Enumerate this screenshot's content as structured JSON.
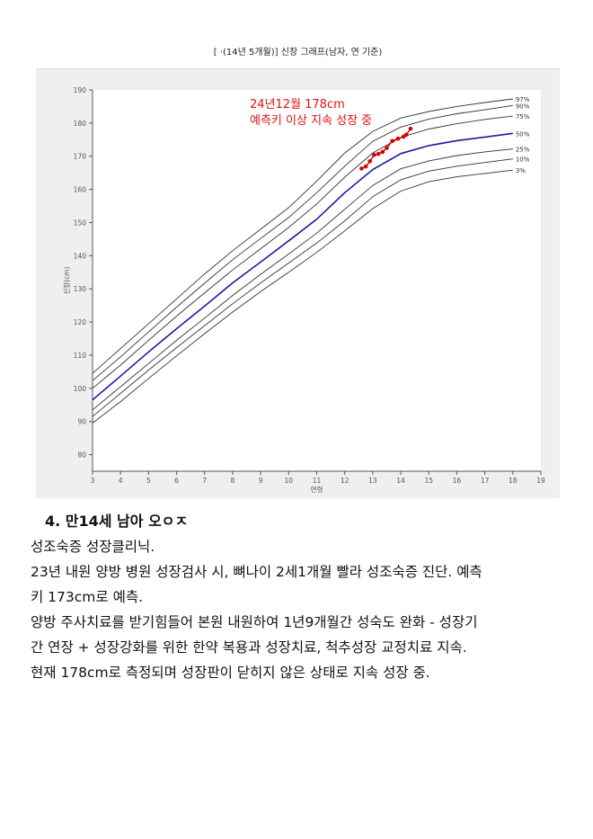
{
  "chart_title": "[        ·(14년 5개월)] 신장 그래프(남자, 연 기준)",
  "chart_data": {
    "type": "line",
    "title": "[        ·(14년 5개월)] 신장 그래프(남자, 연 기준)",
    "xlabel": "연령",
    "ylabel": "신장(cm)",
    "xlim": [
      3,
      19
    ],
    "ylim": [
      75,
      190
    ],
    "x_ticks": [
      3,
      4,
      5,
      6,
      7,
      8,
      9,
      10,
      11,
      12,
      13,
      14,
      15,
      16,
      17,
      18,
      19
    ],
    "y_ticks": [
      80,
      90,
      100,
      110,
      120,
      130,
      140,
      150,
      160,
      170,
      180,
      190
    ],
    "grid": false,
    "percentile_x": [
      3,
      4,
      5,
      6,
      7,
      8,
      9,
      10,
      11,
      12,
      13,
      14,
      15,
      16,
      17,
      18
    ],
    "series": [
      {
        "name": "97%",
        "color": "#333333",
        "values": [
          104.5,
          112,
          119.5,
          127,
          134.5,
          141.5,
          148,
          154.5,
          162.5,
          171,
          177.5,
          181.5,
          183.5,
          185,
          186.2,
          187.3
        ]
      },
      {
        "name": "90%",
        "color": "#333333",
        "values": [
          102.3,
          109.5,
          117,
          124.5,
          131.7,
          138.8,
          145.2,
          151.5,
          159,
          167,
          174.5,
          178.8,
          181.2,
          182.8,
          184,
          185.3
        ]
      },
      {
        "name": "75%",
        "color": "#333333",
        "values": [
          100,
          107,
          114.5,
          121.8,
          128.8,
          135.7,
          142.1,
          148.5,
          155.6,
          163.7,
          171,
          175.7,
          178.2,
          179.8,
          181.1,
          182.1
        ]
      },
      {
        "name": "50%",
        "color": "#1a1aa6",
        "values": [
          96.5,
          103.7,
          111,
          118,
          124.8,
          131.8,
          138.1,
          144.5,
          151,
          159,
          166,
          170.8,
          173.2,
          174.7,
          175.8,
          176.9
        ]
      },
      {
        "name": "25%",
        "color": "#333333",
        "values": [
          93.5,
          100.5,
          107.5,
          114.5,
          121.2,
          128,
          134.4,
          140.5,
          146.8,
          154,
          161.2,
          166.2,
          168.6,
          170.2,
          171.3,
          172.2
        ]
      },
      {
        "name": "10%",
        "color": "#333333",
        "values": [
          91.5,
          98.5,
          105.5,
          112.3,
          118.9,
          125.5,
          131.8,
          137.8,
          143.8,
          150.5,
          157.8,
          162.9,
          165.5,
          167,
          168.1,
          169.2
        ]
      },
      {
        "name": "3%",
        "color": "#333333",
        "values": [
          89.5,
          96,
          103,
          109.8,
          116.5,
          123,
          129.2,
          135,
          141,
          147.5,
          154.2,
          159.5,
          162.3,
          163.8,
          164.8,
          165.8
        ]
      }
    ],
    "measurements": {
      "color": "#d40000",
      "x": [
        12.6,
        12.75,
        12.9,
        13.05,
        13.2,
        13.35,
        13.5,
        13.7,
        13.9,
        14.1,
        14.2,
        14.35
      ],
      "y": [
        166.3,
        166.9,
        168.5,
        170.4,
        170.7,
        171.3,
        172.5,
        174.6,
        175.3,
        175.9,
        176.5,
        178.3
      ]
    },
    "annotation": [
      "24년12월 178cm",
      "예측키 이상 지속 성장 중"
    ],
    "annotation_color": "#e01010"
  },
  "case_heading": "4. 만14세 남아 오ㅇㅈ",
  "body_lines": [
    "성조숙증 성장클리닉.",
    "23년 내원 양방 병원 성장검사 시, 뼈나이 2세1개월 빨라 성조숙증 진단. 예측",
    "키 173cm로 예측.",
    "양방 주사치료를 받기힘들어 본원 내원하여 1년9개월간 성숙도 완화 - 성장기",
    "간 연장 + 성장강화를 위한 한약 복용과 성장치료, 척추성장 교정치료 지속.",
    "현재 178cm로 측정되며 성장판이 닫히지 않은 상태로 지속 성장 중."
  ]
}
